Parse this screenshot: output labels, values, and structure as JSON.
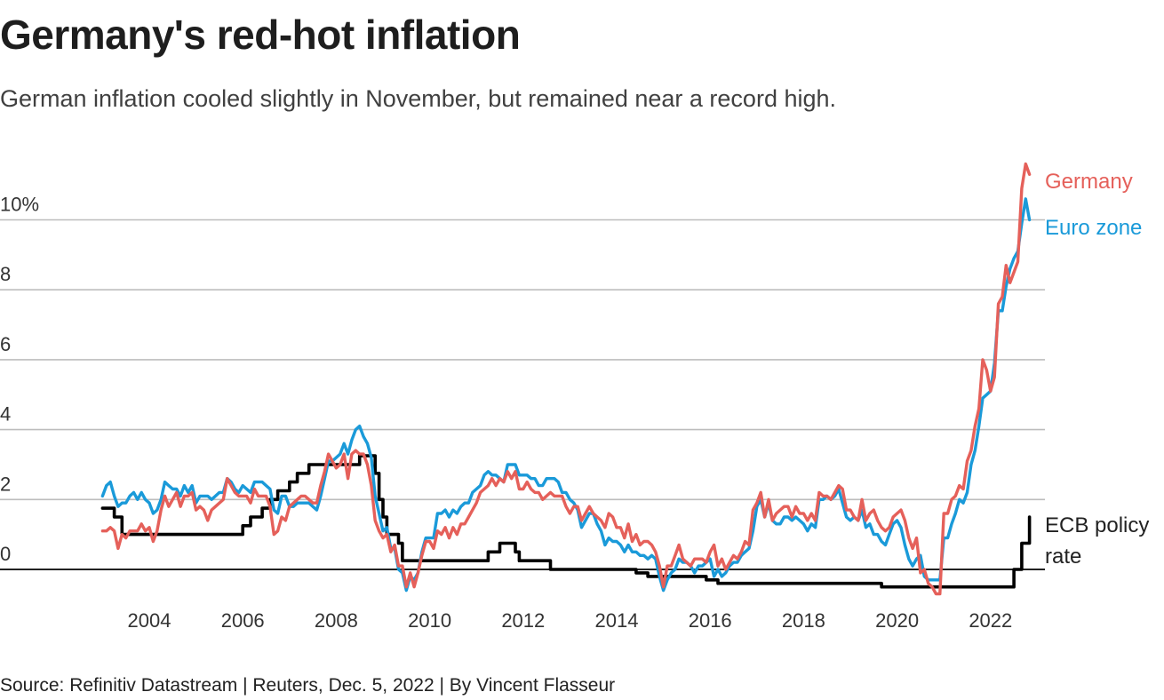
{
  "header": {
    "title": "Germany's red-hot inflation",
    "subtitle": "German inflation cooled slightly in November, but remained near a record high."
  },
  "footer": {
    "source": "Source: Refinitiv Datastream | Reuters, Dec. 5, 2022 | By Vincent Flasseur"
  },
  "colors": {
    "germany": "#e5605a",
    "euro_zone": "#1a9ad9",
    "ecb": "#000000",
    "grid": "#bdbdbd",
    "zero_line": "#222222"
  },
  "chart_data": {
    "type": "line",
    "title": "Germany's red-hot inflation",
    "subtitle": "German inflation cooled slightly in November, but remained near a record high.",
    "xlabel": "",
    "ylabel": "",
    "x_start": "2003-01",
    "x_end": "2022-11",
    "x_frequency": "monthly",
    "xlim": [
      2003.0,
      2022.95
    ],
    "ylim": [
      -0.8,
      11.6
    ],
    "x_ticks": [
      "2004",
      "2006",
      "2008",
      "2010",
      "2012",
      "2014",
      "2016",
      "2018",
      "2020",
      "2022"
    ],
    "x_tick_values": [
      2004,
      2006,
      2008,
      2010,
      2012,
      2014,
      2016,
      2018,
      2020,
      2022
    ],
    "y_ticks": [
      "0",
      "2",
      "4",
      "6",
      "8",
      "10%"
    ],
    "y_tick_values": [
      0,
      2,
      4,
      6,
      8,
      10
    ],
    "grid": true,
    "legend_placement": "right (direct labels at line ends)",
    "series": [
      {
        "name": "Germany",
        "label": "Germany",
        "color_key": "germany",
        "values": [
          1.1,
          1.1,
          1.2,
          1.1,
          0.6,
          1.0,
          0.9,
          1.1,
          1.1,
          1.1,
          1.3,
          1.1,
          1.2,
          0.8,
          1.1,
          1.7,
          2.1,
          1.8,
          2.0,
          2.2,
          1.8,
          2.1,
          2.1,
          2.2,
          1.7,
          1.8,
          1.7,
          1.4,
          1.7,
          1.8,
          1.9,
          2.0,
          2.6,
          2.4,
          2.2,
          2.1,
          2.1,
          2.1,
          1.9,
          2.3,
          2.1,
          2.1,
          2.1,
          1.8,
          1.0,
          1.1,
          1.5,
          1.4,
          1.8,
          1.9,
          2.0,
          2.1,
          2.1,
          2.0,
          1.9,
          1.9,
          2.4,
          2.8,
          3.3,
          3.1,
          2.9,
          3.0,
          3.3,
          2.6,
          3.3,
          3.4,
          3.3,
          3.3,
          3.0,
          2.4,
          1.4,
          1.1,
          0.9,
          1.0,
          0.5,
          0.7,
          0.1,
          0.1,
          -0.5,
          -0.1,
          -0.5,
          -0.1,
          0.4,
          0.8,
          0.8,
          0.6,
          1.1,
          1.0,
          1.2,
          0.9,
          1.2,
          1.0,
          1.3,
          1.3,
          1.5,
          1.7,
          1.9,
          2.2,
          2.3,
          2.4,
          2.6,
          2.4,
          2.6,
          2.5,
          2.8,
          2.6,
          2.8,
          2.3,
          2.3,
          2.5,
          2.3,
          2.2,
          2.2,
          2.0,
          2.1,
          2.2,
          2.1,
          2.1,
          2.1,
          1.8,
          1.6,
          1.8,
          1.8,
          1.4,
          1.6,
          1.8,
          1.6,
          1.5,
          1.4,
          1.2,
          1.6,
          1.5,
          1.2,
          1.2,
          0.9,
          1.3,
          0.8,
          1.0,
          0.7,
          0.8,
          0.8,
          0.7,
          0.5,
          0.1,
          -0.5,
          0.1,
          0.1,
          0.4,
          0.7,
          0.3,
          0.2,
          0.1,
          0.3,
          0.3,
          0.3,
          0.2,
          0.5,
          0.7,
          0.1,
          0.3,
          0.0,
          0.2,
          0.4,
          0.3,
          0.5,
          0.8,
          0.7,
          1.7,
          1.9,
          2.2,
          1.5,
          2.0,
          1.4,
          1.6,
          1.7,
          1.8,
          1.8,
          1.5,
          1.8,
          1.6,
          1.6,
          1.4,
          1.6,
          1.4,
          2.2,
          2.1,
          2.1,
          2.0,
          2.2,
          2.4,
          2.3,
          1.7,
          1.7,
          1.5,
          1.4,
          2.0,
          1.4,
          1.6,
          1.7,
          1.4,
          1.2,
          1.1,
          1.2,
          1.5,
          1.6,
          1.7,
          1.4,
          0.9,
          0.6,
          0.9,
          -0.1,
          0.0,
          -0.4,
          -0.5,
          -0.7,
          -0.7,
          1.6,
          1.6,
          2.0,
          2.1,
          2.4,
          2.3,
          3.1,
          3.4,
          4.1,
          4.6,
          6.0,
          5.7,
          5.1,
          5.5,
          7.6,
          7.8,
          8.7,
          8.2,
          8.5,
          8.8,
          10.9,
          11.6,
          11.3
        ]
      },
      {
        "name": "Euro zone",
        "label": "Euro zone",
        "color_key": "euro_zone",
        "values": [
          2.1,
          2.4,
          2.5,
          2.1,
          1.8,
          1.9,
          1.9,
          2.1,
          2.2,
          2.0,
          2.2,
          2.0,
          1.9,
          1.6,
          1.7,
          2.0,
          2.5,
          2.4,
          2.3,
          2.3,
          2.1,
          2.4,
          2.2,
          2.4,
          1.9,
          2.1,
          2.1,
          2.1,
          2.0,
          2.1,
          2.2,
          2.2,
          2.6,
          2.5,
          2.3,
          2.2,
          2.4,
          2.3,
          2.2,
          2.5,
          2.5,
          2.5,
          2.4,
          2.3,
          1.7,
          1.6,
          2.1,
          2.1,
          1.8,
          1.8,
          1.9,
          1.9,
          1.9,
          1.9,
          1.8,
          1.7,
          2.1,
          2.6,
          3.1,
          3.1,
          3.2,
          3.3,
          3.6,
          3.3,
          3.7,
          4.0,
          4.1,
          3.8,
          3.6,
          3.2,
          2.1,
          1.6,
          1.1,
          1.2,
          0.6,
          0.6,
          0.0,
          -0.1,
          -0.6,
          -0.2,
          -0.3,
          -0.1,
          0.5,
          0.9,
          0.9,
          0.9,
          1.6,
          1.6,
          1.7,
          1.5,
          1.7,
          1.6,
          1.8,
          1.9,
          1.9,
          2.2,
          2.3,
          2.4,
          2.7,
          2.8,
          2.7,
          2.7,
          2.6,
          2.5,
          3.0,
          3.0,
          3.0,
          2.7,
          2.7,
          2.7,
          2.6,
          2.6,
          2.4,
          2.4,
          2.6,
          2.6,
          2.6,
          2.5,
          2.2,
          2.2,
          2.0,
          1.9,
          1.7,
          1.2,
          1.4,
          1.6,
          1.6,
          1.3,
          1.1,
          0.7,
          0.9,
          0.8,
          0.8,
          0.7,
          0.5,
          0.7,
          0.5,
          0.5,
          0.4,
          0.4,
          0.3,
          0.4,
          0.3,
          -0.2,
          -0.6,
          -0.3,
          -0.1,
          0.0,
          0.3,
          0.2,
          0.2,
          0.1,
          -0.1,
          0.1,
          0.1,
          0.2,
          0.3,
          -0.2,
          0.0,
          -0.2,
          -0.1,
          0.1,
          0.2,
          0.2,
          0.4,
          0.5,
          0.6,
          1.1,
          1.8,
          2.0,
          1.5,
          1.9,
          1.4,
          1.3,
          1.3,
          1.5,
          1.5,
          1.4,
          1.5,
          1.4,
          1.3,
          1.1,
          1.3,
          1.2,
          2.0,
          2.0,
          2.1,
          2.0,
          2.1,
          2.3,
          1.9,
          1.5,
          1.4,
          1.5,
          1.4,
          1.7,
          1.2,
          1.3,
          1.0,
          1.0,
          0.8,
          0.7,
          1.0,
          1.3,
          1.4,
          1.2,
          0.7,
          0.3,
          0.1,
          0.3,
          0.4,
          -0.2,
          -0.3,
          -0.3,
          -0.3,
          -0.3,
          0.9,
          0.9,
          1.3,
          1.6,
          2.0,
          1.9,
          2.2,
          3.0,
          3.4,
          4.1,
          4.9,
          5.0,
          5.1,
          5.9,
          7.4,
          7.4,
          8.1,
          8.6,
          8.9,
          9.1,
          9.9,
          10.6,
          10.0
        ]
      },
      {
        "name": "ECB policy rate",
        "label": "ECB policy rate",
        "color_key": "ecb",
        "step": true,
        "values": [
          1.75,
          1.75,
          1.75,
          1.5,
          1.5,
          1.0,
          1.0,
          1.0,
          1.0,
          1.0,
          1.0,
          1.0,
          1.0,
          1.0,
          1.0,
          1.0,
          1.0,
          1.0,
          1.0,
          1.0,
          1.0,
          1.0,
          1.0,
          1.0,
          1.0,
          1.0,
          1.0,
          1.0,
          1.0,
          1.0,
          1.0,
          1.0,
          1.0,
          1.0,
          1.0,
          1.0,
          1.25,
          1.25,
          1.5,
          1.5,
          1.5,
          1.75,
          1.75,
          2.0,
          2.0,
          2.25,
          2.25,
          2.25,
          2.5,
          2.5,
          2.75,
          2.75,
          2.75,
          3.0,
          3.0,
          3.0,
          3.0,
          3.0,
          3.0,
          3.0,
          3.0,
          3.0,
          3.0,
          3.0,
          3.0,
          3.0,
          3.25,
          3.25,
          3.25,
          3.25,
          2.75,
          2.0,
          1.5,
          1.0,
          1.0,
          1.0,
          0.75,
          0.25,
          0.25,
          0.25,
          0.25,
          0.25,
          0.25,
          0.25,
          0.25,
          0.25,
          0.25,
          0.25,
          0.25,
          0.25,
          0.25,
          0.25,
          0.25,
          0.25,
          0.25,
          0.25,
          0.25,
          0.25,
          0.25,
          0.5,
          0.5,
          0.5,
          0.75,
          0.75,
          0.75,
          0.75,
          0.5,
          0.25,
          0.25,
          0.25,
          0.25,
          0.25,
          0.25,
          0.25,
          0.25,
          0.0,
          0.0,
          0.0,
          0.0,
          0.0,
          0.0,
          0.0,
          0.0,
          0.0,
          0.0,
          0.0,
          0.0,
          0.0,
          0.0,
          0.0,
          0.0,
          0.0,
          0.0,
          0.0,
          0.0,
          0.0,
          0.0,
          -0.1,
          -0.1,
          -0.1,
          -0.2,
          -0.2,
          -0.2,
          -0.2,
          -0.2,
          -0.2,
          -0.2,
          -0.2,
          -0.2,
          -0.2,
          -0.2,
          -0.2,
          -0.2,
          -0.2,
          -0.2,
          -0.3,
          -0.3,
          -0.3,
          -0.4,
          -0.4,
          -0.4,
          -0.4,
          -0.4,
          -0.4,
          -0.4,
          -0.4,
          -0.4,
          -0.4,
          -0.4,
          -0.4,
          -0.4,
          -0.4,
          -0.4,
          -0.4,
          -0.4,
          -0.4,
          -0.4,
          -0.4,
          -0.4,
          -0.4,
          -0.4,
          -0.4,
          -0.4,
          -0.4,
          -0.4,
          -0.4,
          -0.4,
          -0.4,
          -0.4,
          -0.4,
          -0.4,
          -0.4,
          -0.4,
          -0.4,
          -0.4,
          -0.4,
          -0.4,
          -0.4,
          -0.4,
          -0.4,
          -0.5,
          -0.5,
          -0.5,
          -0.5,
          -0.5,
          -0.5,
          -0.5,
          -0.5,
          -0.5,
          -0.5,
          -0.5,
          -0.5,
          -0.5,
          -0.5,
          -0.5,
          -0.5,
          -0.5,
          -0.5,
          -0.5,
          -0.5,
          -0.5,
          -0.5,
          -0.5,
          -0.5,
          -0.5,
          -0.5,
          -0.5,
          -0.5,
          -0.5,
          -0.5,
          -0.5,
          -0.5,
          -0.5,
          -0.5,
          0.0,
          0.0,
          0.75,
          0.75,
          1.5
        ]
      }
    ]
  }
}
